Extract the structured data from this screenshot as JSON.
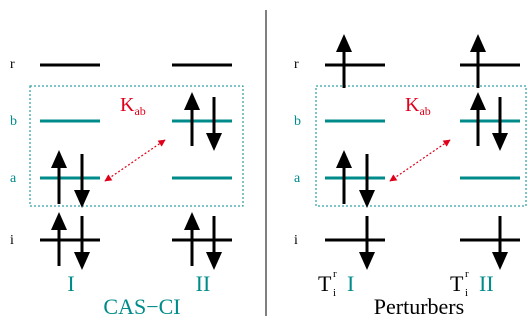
{
  "colors": {
    "level": "#000000",
    "active_level": "#008b8b",
    "box": "#008b8b",
    "coupling": "#e0001a",
    "teal_text": "#008b8b",
    "black_text": "#000000"
  },
  "orbital_labels": {
    "r": "r",
    "b": "b",
    "a": "a",
    "i": "i"
  },
  "coupling_label": {
    "main": "K",
    "sub": "ab"
  },
  "left_panel": {
    "title": "CAS−CI",
    "config1": "I",
    "config2": "II"
  },
  "right_panel": {
    "title": "Perturbers",
    "t_main": "T",
    "t_sup": "r",
    "t_sub": "i",
    "config1": "I",
    "config2": "II"
  }
}
